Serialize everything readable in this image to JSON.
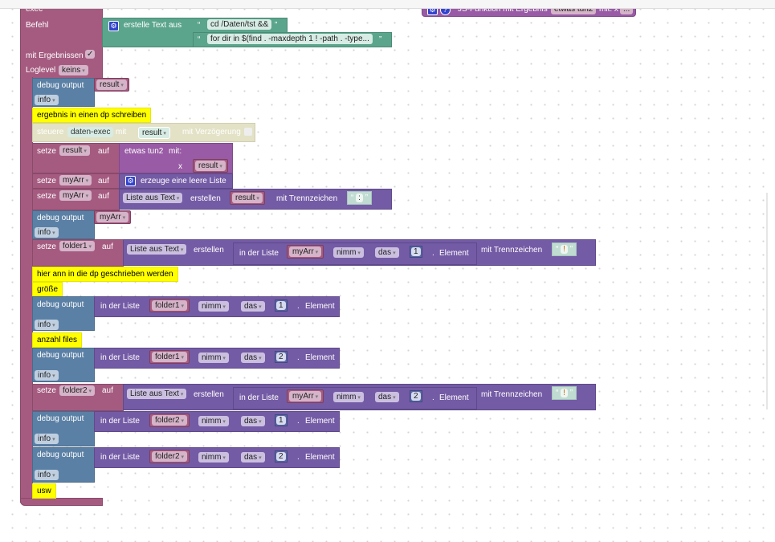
{
  "js_function": {
    "label": "JS-Funktion mit Ergebnis",
    "name": "etwas tun2",
    "mit": "mit: x",
    "more": "..."
  },
  "exec": {
    "title": "exec",
    "befehl": "Befehl",
    "mit_ergebnissen": "mit Ergebnissen",
    "checked": true,
    "checkmark": "✓",
    "loglevel": "Loglevel",
    "loglevel_value": "keins"
  },
  "create_text": {
    "label": "erstelle Text aus",
    "items": [
      "cd /Daten/tst &&",
      "for dir in $(find . -maxdepth 1 ! -path . -type..."
    ]
  },
  "quote_open": "“",
  "quote_close": "”",
  "debug": {
    "label": "debug output",
    "level": "info"
  },
  "comments": [
    "ergebnis in einen dp schreiben",
    "hier ann in die dp geschrieben werden",
    "größe",
    "anzahl files",
    "usw"
  ],
  "control": {
    "label": "steuere",
    "target": "daten-exec",
    "mit": "mit",
    "var": "result",
    "delay": "mit Verzögerung"
  },
  "set": {
    "setze": "setze",
    "auf": "auf"
  },
  "vars": {
    "result": "result",
    "myArr": "myArr",
    "folder1": "folder1",
    "folder2": "folder2"
  },
  "func_call": {
    "label": "etwas tun2",
    "mit": "mit:",
    "param": "x"
  },
  "empty_list": "erzeuge eine leere Liste",
  "list_from_text": {
    "mode": "Liste aus Text",
    "erstellen": "erstellen",
    "separator_label": "mit Trennzeichen",
    "sep1": ":",
    "sep2": "!"
  },
  "get_item": {
    "in_list": "in der Liste",
    "op": "nimm",
    "where": "das",
    "dot": ".",
    "element": "Element"
  },
  "indices": [
    "1",
    "2"
  ]
}
